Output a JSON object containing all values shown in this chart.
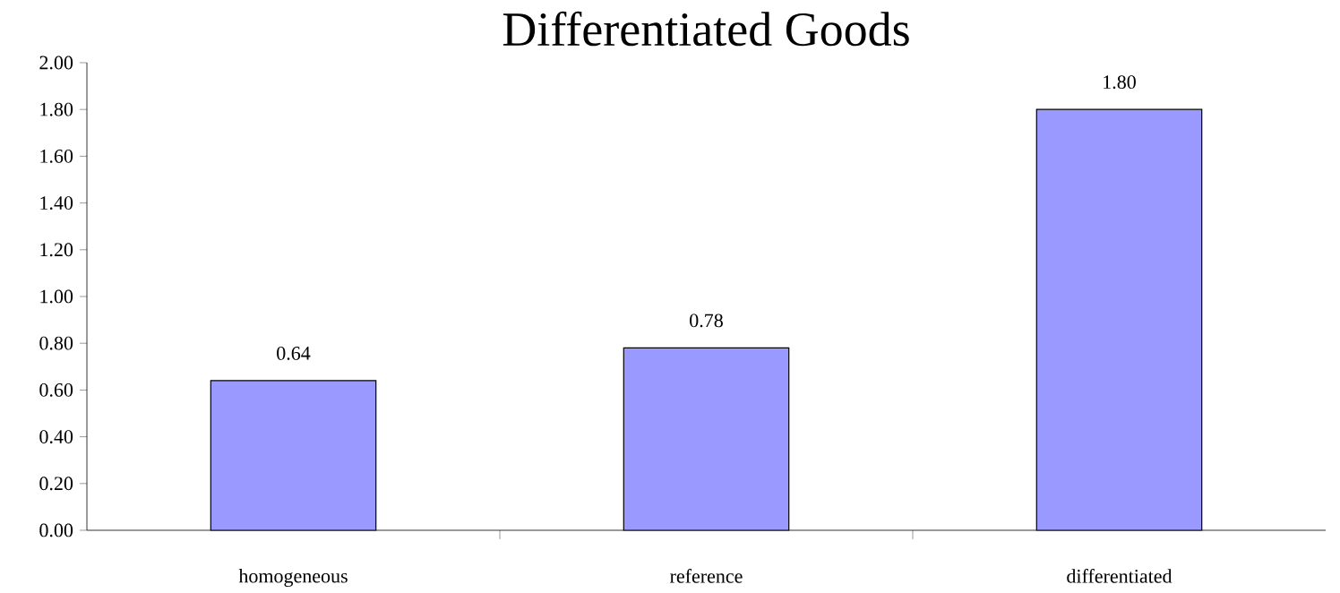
{
  "chart_data": {
    "type": "bar",
    "title": "Differentiated Goods",
    "categories": [
      "homogeneous",
      "reference",
      "differentiated"
    ],
    "values": [
      0.64,
      0.78,
      1.8
    ],
    "value_labels": [
      "0.64",
      "0.78",
      "1.80"
    ],
    "color": "#9999ff",
    "ylim": [
      0,
      2
    ],
    "yticks": [
      {
        "value": 0,
        "label": "0.00"
      },
      {
        "value": 0.2,
        "label": "0.20"
      },
      {
        "value": 0.4,
        "label": "0.40"
      },
      {
        "value": 0.6,
        "label": "0.60"
      },
      {
        "value": 0.8,
        "label": "0.80"
      },
      {
        "value": 1.0,
        "label": "1.00"
      },
      {
        "value": 1.2,
        "label": "1.20"
      },
      {
        "value": 1.4,
        "label": "1.40"
      },
      {
        "value": 1.6,
        "label": "1.60"
      },
      {
        "value": 1.8,
        "label": "1.80"
      },
      {
        "value": 2.0,
        "label": "2.00"
      }
    ],
    "grid": false
  }
}
